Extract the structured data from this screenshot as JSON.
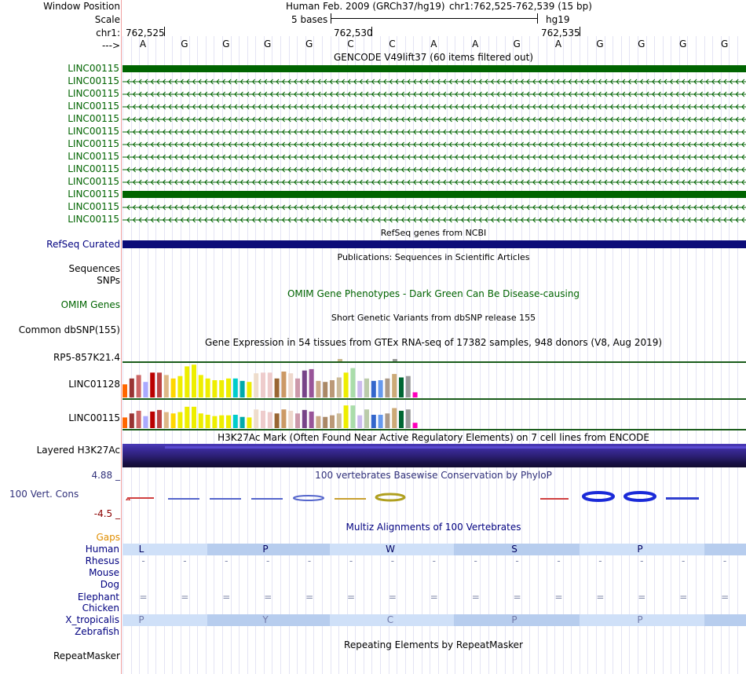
{
  "header": {
    "window_position_label": "Window Position",
    "scale_label": "Scale",
    "chr_label": "chr1:",
    "arrow_label": "--->",
    "assembly_text": "Human Feb. 2009 (GRCh37/hg19)",
    "position_text": "chr1:762,525-762,539 (15 bp)",
    "scale_text": "5 bases",
    "db_text": "hg19",
    "coord_1": "762,525",
    "coord_2": "762,530",
    "coord_3": "762,535"
  },
  "sequence": [
    "A",
    "G",
    "G",
    "G",
    "G",
    "C",
    "C",
    "A",
    "A",
    "G",
    "A",
    "G",
    "G",
    "G",
    "G"
  ],
  "gencode": {
    "title": "GENCODE V49lift37 (60 items filtered out)",
    "items": [
      "LINC00115",
      "LINC00115",
      "LINC00115",
      "LINC00115",
      "LINC00115",
      "LINC00115",
      "LINC00115",
      "LINC00115",
      "LINC00115",
      "LINC00115",
      "LINC00115",
      "LINC00115",
      "LINC00115"
    ],
    "solid_rows": [
      0,
      10
    ],
    "color": "#006400"
  },
  "refseq": {
    "title": "RefSeq genes from NCBI",
    "label": "RefSeq Curated",
    "color": "#0c0c78"
  },
  "publications": {
    "title": "Publications: Sequences in Scientific Articles",
    "labels": [
      "Sequences",
      "SNPs"
    ]
  },
  "omim": {
    "title": "OMIM Gene Phenotypes - Dark Green Can Be Disease-causing",
    "label": "OMIM Genes"
  },
  "dbsnp": {
    "title": "Short Genetic Variants from dbSNP release 155",
    "label": "Common dbSNP(155)"
  },
  "gtex": {
    "title": "Gene Expression in 54 tissues from GTEx RNA-seq of 17382 samples, 948 donors (V8, Aug 2019)",
    "genes": [
      "RP5-857K21.4",
      "LINC01128",
      "LINC00115"
    ],
    "tissue_colors": [
      "#FF6600",
      "#993333",
      "#CC6666",
      "#AAAAFF",
      "#BB0000",
      "#BB4444",
      "#DEB887",
      "#FFD700",
      "#EEEE00",
      "#EEEE00",
      "#EEEE00",
      "#EEEE00",
      "#EEEE00",
      "#EEEE00",
      "#EEEE00",
      "#EEEE00",
      "#00CCCC",
      "#00AAAA",
      "#EEEE00",
      "#EEDDCC",
      "#EECCCC",
      "#EECCCC",
      "#996633",
      "#CC9966",
      "#EED8CC",
      "#CC99AA",
      "#774488",
      "#995599",
      "#CCAA88",
      "#AA8866",
      "#BB9977",
      "#CCBB99",
      "#EEEE00",
      "#AADDAA",
      "#CCBBEE",
      "#BBCCAA",
      "#3366CC",
      "#6699EE",
      "#AA9988",
      "#CCAA77",
      "#006633",
      "#999999",
      "#FF00BB"
    ],
    "linc01128_values": [
      0.38,
      0.55,
      0.65,
      0.45,
      0.72,
      0.72,
      0.65,
      0.55,
      0.62,
      0.9,
      0.95,
      0.65,
      0.55,
      0.5,
      0.5,
      0.55,
      0.55,
      0.48,
      0.45,
      0.7,
      0.72,
      0.72,
      0.55,
      0.75,
      0.7,
      0.55,
      0.78,
      0.82,
      0.48,
      0.45,
      0.5,
      0.58,
      0.72,
      0.85,
      0.48,
      0.55,
      0.48,
      0.5,
      0.55,
      0.68,
      0.58,
      0.62,
      0.15
    ],
    "linc00115_values": [
      0.4,
      0.55,
      0.65,
      0.45,
      0.62,
      0.68,
      0.6,
      0.55,
      0.6,
      0.8,
      0.8,
      0.55,
      0.5,
      0.45,
      0.48,
      0.48,
      0.5,
      0.42,
      0.4,
      0.7,
      0.65,
      0.6,
      0.55,
      0.7,
      0.65,
      0.55,
      0.68,
      0.62,
      0.45,
      0.42,
      0.48,
      0.55,
      0.85,
      0.85,
      0.48,
      0.7,
      0.5,
      0.5,
      0.55,
      0.75,
      0.65,
      0.7,
      0.2
    ]
  },
  "h3k27ac": {
    "title": "H3K27Ac Mark (Often Found Near Active Regulatory Elements) on 7 cell lines from ENCODE",
    "label": "Layered H3K27Ac"
  },
  "conservation": {
    "title": "100 vertebrates Basewise Conservation by PhyloP",
    "label": "100 Vert. Cons",
    "max": "4.88 _",
    "min": "-4.5 _"
  },
  "multiz": {
    "title": "Multiz Alignments of 100 Vertebrates",
    "gaps_label": "Gaps",
    "species": [
      "Human",
      "Rhesus",
      "Mouse",
      "Dog",
      "Elephant",
      "Chicken",
      "X_tropicalis",
      "Zebrafish"
    ],
    "human_aa": [
      "L",
      "P",
      "W",
      "S",
      "P"
    ],
    "xtrop_aa": [
      "P",
      "Y",
      "C",
      "P",
      "P"
    ],
    "rhesus_symbol": "-",
    "elephant_symbol": "="
  },
  "repeatmasker": {
    "title": "Repeating Elements by RepeatMasker",
    "label": "RepeatMasker"
  }
}
